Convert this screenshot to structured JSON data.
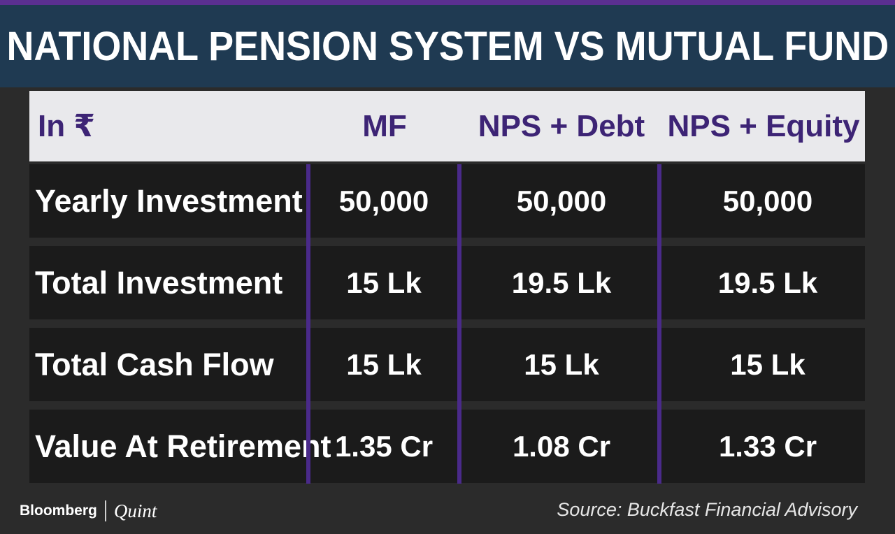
{
  "title": "NATIONAL PENSION SYSTEM VS MUTUAL FUND",
  "chart_data": {
    "type": "table",
    "columns": [
      "In ₹",
      "MF",
      "NPS + Debt",
      "NPS + Equity"
    ],
    "rows": [
      {
        "label": "Yearly Investment",
        "values": [
          "50,000",
          "50,000",
          "50,000"
        ]
      },
      {
        "label": "Total Investment",
        "values": [
          "15 Lk",
          "19.5 Lk",
          "19.5 Lk"
        ]
      },
      {
        "label": "Total Cash Flow",
        "values": [
          "15 Lk",
          "15 Lk",
          "15 Lk"
        ]
      },
      {
        "label": "Value At Retirement",
        "values": [
          "1.35 Cr",
          "1.08 Cr",
          "1.33 Cr"
        ]
      }
    ]
  },
  "footer": {
    "brand_primary": "Bloomberg",
    "brand_secondary": "Quint",
    "source": "Source: Buckfast Financial Advisory"
  },
  "colors": {
    "title_bar": "#1f3a52",
    "accent_purple": "#5b2f91",
    "header_text": "#3d2475",
    "header_bg": "#e9e9ec",
    "row_bg": "#1b1b1b",
    "background": "#2b2b2b"
  }
}
